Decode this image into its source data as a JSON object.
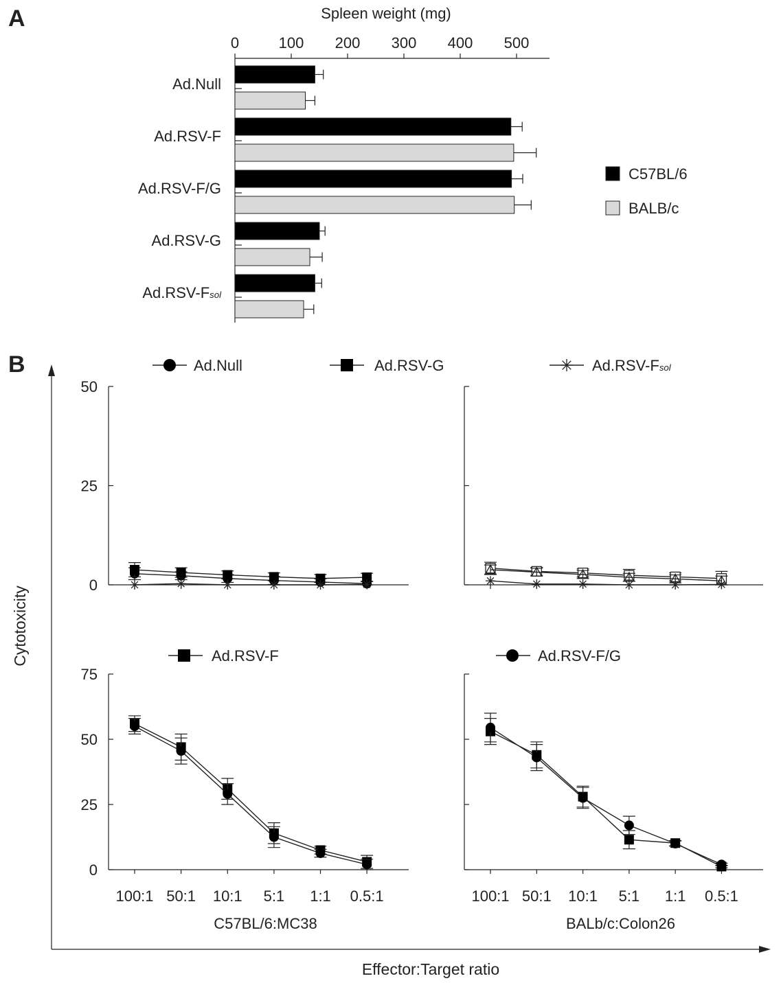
{
  "panel_labels": {
    "a": "A",
    "b": "B"
  },
  "shared_axes": {
    "ylabel": "Cytotoxicity",
    "xlabel": "Effector:Target ratio"
  },
  "chart_data": [
    {
      "id": "spleen",
      "type": "bar",
      "orientation": "horizontal",
      "xlabel": "Spleen weight (mg)",
      "xlim": [
        0,
        550
      ],
      "xticks": [
        0,
        100,
        200,
        300,
        400,
        500
      ],
      "categories": [
        "Ad.Null",
        "Ad.RSV-F",
        "Ad.RSV-F/G",
        "Ad.RSV-G",
        "Ad.RSV-F"
      ],
      "category_subscripts": [
        "",
        "",
        "",
        "",
        "sol"
      ],
      "series": [
        {
          "name": "C57BL/6",
          "color": "#000000",
          "values": [
            142,
            490,
            491,
            150,
            142
          ],
          "errors": [
            15,
            20,
            20,
            10,
            12
          ]
        },
        {
          "name": "BALB/c",
          "color": "#d9d9d9",
          "values": [
            125,
            495,
            496,
            133,
            122
          ],
          "errors": [
            17,
            40,
            30,
            22,
            18
          ]
        }
      ],
      "legend": "right"
    },
    {
      "id": "b1",
      "type": "line",
      "xlabel": "",
      "categories": [
        "100:1",
        "50:1",
        "10:1",
        "5:1",
        "1:1",
        "0.5:1"
      ],
      "ylim": [
        0,
        50
      ],
      "yticks": [
        0,
        25,
        50
      ],
      "legend": [
        {
          "name": "Ad.Null",
          "sub": "",
          "marker": "circle"
        },
        {
          "name": "Ad.RSV-G",
          "sub": "",
          "marker": "square"
        },
        {
          "name": "Ad.RSV-F",
          "sub": "sol",
          "marker": "star"
        }
      ],
      "series": [
        {
          "marker": "circle",
          "values": [
            2.8,
            2.3,
            1.6,
            1.1,
            0.7,
            0.3
          ],
          "errors": [
            1.5,
            1,
            1,
            1,
            0.8,
            0.5
          ]
        },
        {
          "marker": "square",
          "values": [
            3.8,
            3.1,
            2.5,
            2.0,
            1.6,
            1.9
          ],
          "errors": [
            1.8,
            1.2,
            1,
            1,
            1,
            1
          ]
        },
        {
          "marker": "star",
          "values": [
            0,
            0.3,
            0,
            0,
            0,
            0.1
          ],
          "errors": [
            0,
            0,
            0,
            0,
            0,
            0
          ]
        }
      ]
    },
    {
      "id": "b2",
      "type": "line",
      "xlabel": "",
      "categories": [
        "100:1",
        "50:1",
        "10:1",
        "5:1",
        "1:1",
        "0.5:1"
      ],
      "ylim": [
        0,
        50
      ],
      "yticks": [],
      "series": [
        {
          "marker": "open-square",
          "values": [
            4.2,
            3.4,
            3.0,
            2.4,
            2.0,
            1.6
          ],
          "errors": [
            1.5,
            1,
            1,
            1.5,
            1,
            1.8
          ]
        },
        {
          "marker": "open-triangle",
          "values": [
            3.8,
            3.2,
            2.6,
            1.9,
            1.5,
            1.0
          ],
          "errors": [
            1.2,
            1,
            1,
            1,
            1,
            1.2
          ]
        },
        {
          "marker": "star",
          "values": [
            1.0,
            0.2,
            0.2,
            0,
            0,
            0.1
          ],
          "errors": [
            0,
            0,
            0,
            0,
            0,
            0
          ]
        }
      ]
    },
    {
      "id": "b3",
      "type": "line",
      "xlabel": "C57BL/6:MC38",
      "categories": [
        "100:1",
        "50:1",
        "10:1",
        "5:1",
        "1:1",
        "0.5:1"
      ],
      "ylim": [
        0,
        75
      ],
      "yticks": [
        0,
        25,
        50,
        75
      ],
      "legend": [
        {
          "name": "Ad.RSV-F",
          "sub": "",
          "marker": "square"
        }
      ],
      "series": [
        {
          "marker": "square",
          "values": [
            56,
            47,
            31,
            14,
            7.5,
            3
          ],
          "errors": [
            3,
            5,
            4,
            4,
            1.5,
            2.5
          ]
        },
        {
          "marker": "circle",
          "values": [
            55,
            45.5,
            29,
            12.5,
            6.3,
            2
          ],
          "errors": [
            3,
            5,
            4,
            4,
            1.5,
            2
          ]
        }
      ]
    },
    {
      "id": "b4",
      "type": "line",
      "xlabel": "BALb/c:Colon26",
      "categories": [
        "100:1",
        "50:1",
        "10:1",
        "5:1",
        "1:1",
        "0.5:1"
      ],
      "ylim": [
        0,
        75
      ],
      "yticks": [],
      "legend": [
        {
          "name": "Ad.RSV-F/G",
          "sub": "",
          "marker": "circle"
        }
      ],
      "series": [
        {
          "marker": "square",
          "values": [
            53,
            44,
            28,
            11.5,
            10.2,
            1.2
          ],
          "errors": [
            5,
            5,
            4,
            3.5,
            1,
            0.5
          ]
        },
        {
          "marker": "circle",
          "values": [
            54.5,
            43,
            27.5,
            17,
            10,
            2
          ],
          "errors": [
            5.5,
            5,
            4,
            3.5,
            1,
            0.5
          ]
        }
      ]
    }
  ]
}
